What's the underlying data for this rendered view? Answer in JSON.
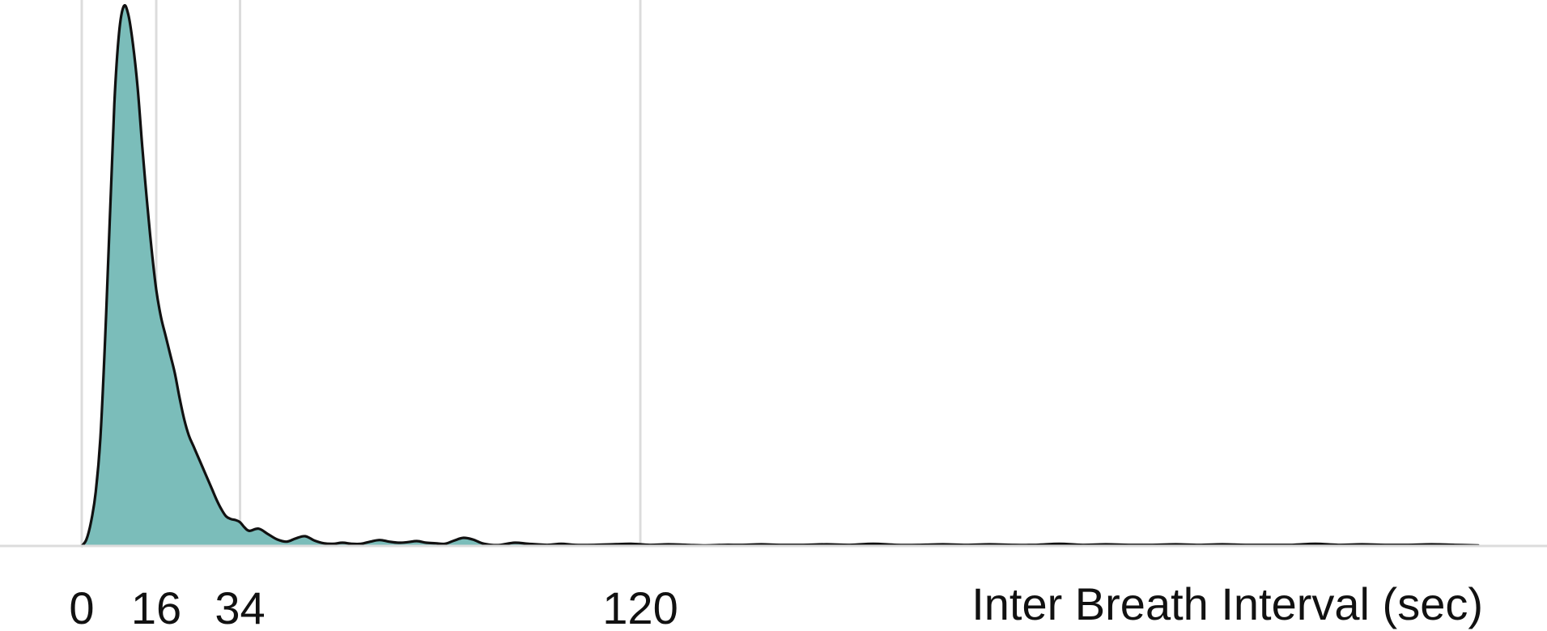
{
  "chart_data": {
    "type": "area",
    "xlabel": "Inter Breath Interval (sec)",
    "ylabel": "",
    "title": "",
    "grid": "vertical lines at tick positions",
    "xlim": [
      0,
      300
    ],
    "ylim": [
      0,
      1
    ],
    "x_ticks": [
      0,
      16,
      34,
      120
    ],
    "x_tick_labels": [
      "0",
      "16",
      "34",
      "120"
    ],
    "colors": {
      "fill": "#7bbdba",
      "line": "#111111",
      "grid": "#dcdcdc"
    },
    "series": [
      {
        "x": [
          0,
          1,
          2,
          3,
          4,
          5,
          6,
          7,
          8,
          9,
          10,
          11,
          12,
          13,
          14,
          15,
          16,
          17,
          18,
          19,
          20,
          21,
          22,
          23,
          24,
          25,
          26,
          27,
          28,
          29,
          30,
          31,
          32,
          33,
          34,
          35,
          36,
          38,
          40,
          42,
          44,
          46,
          48,
          50,
          52,
          54,
          56,
          58,
          60,
          62,
          64,
          66,
          68,
          70,
          72,
          74,
          76,
          78,
          80,
          82,
          84,
          86,
          88,
          90,
          93,
          96,
          100,
          103,
          106,
          110,
          114,
          118,
          122,
          126,
          130,
          134,
          138,
          142,
          146,
          150,
          155,
          160,
          165,
          170,
          175,
          180,
          185,
          190,
          195,
          200,
          205,
          210,
          215,
          220,
          225,
          230,
          235,
          240,
          245,
          250,
          255,
          260,
          265,
          270,
          275,
          280,
          285,
          290,
          295,
          300
        ],
        "y": [
          0.0,
          0.012,
          0.045,
          0.1,
          0.2,
          0.38,
          0.6,
          0.82,
          0.95,
          1.0,
          0.985,
          0.93,
          0.85,
          0.74,
          0.64,
          0.55,
          0.475,
          0.425,
          0.39,
          0.355,
          0.32,
          0.275,
          0.235,
          0.205,
          0.185,
          0.165,
          0.145,
          0.125,
          0.105,
          0.085,
          0.068,
          0.055,
          0.05,
          0.048,
          0.044,
          0.034,
          0.028,
          0.032,
          0.022,
          0.012,
          0.008,
          0.014,
          0.018,
          0.01,
          0.005,
          0.004,
          0.006,
          0.004,
          0.004,
          0.008,
          0.011,
          0.008,
          0.006,
          0.007,
          0.009,
          0.006,
          0.005,
          0.004,
          0.01,
          0.015,
          0.012,
          0.005,
          0.002,
          0.002,
          0.006,
          0.004,
          0.002,
          0.004,
          0.002,
          0.002,
          0.003,
          0.004,
          0.002,
          0.003,
          0.002,
          0.001,
          0.002,
          0.002,
          0.003,
          0.002,
          0.002,
          0.003,
          0.002,
          0.004,
          0.002,
          0.002,
          0.003,
          0.002,
          0.003,
          0.002,
          0.002,
          0.004,
          0.002,
          0.003,
          0.002,
          0.002,
          0.003,
          0.002,
          0.003,
          0.002,
          0.002,
          0.002,
          0.004,
          0.002,
          0.003,
          0.002,
          0.002,
          0.003,
          0.002,
          0.001
        ]
      }
    ]
  }
}
